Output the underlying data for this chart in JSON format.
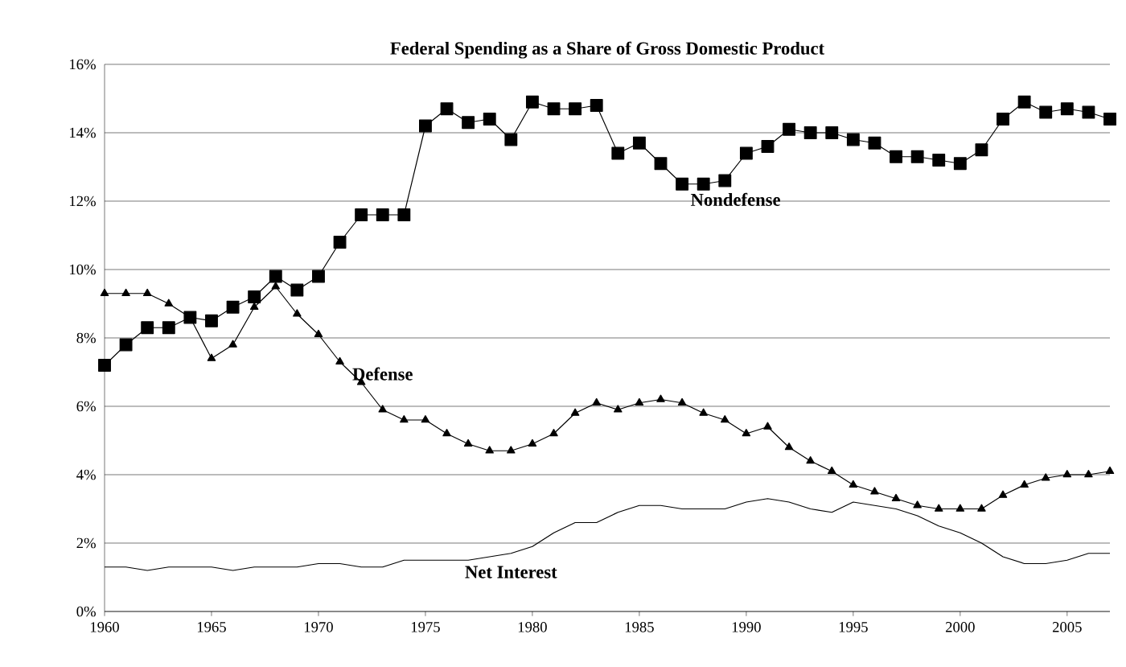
{
  "chart_data": {
    "type": "line",
    "title": "Federal Spending as a Share of Gross Domestic Product",
    "x": [
      1960,
      1961,
      1962,
      1963,
      1964,
      1965,
      1966,
      1967,
      1968,
      1969,
      1970,
      1971,
      1972,
      1973,
      1974,
      1975,
      1976,
      1977,
      1978,
      1979,
      1980,
      1981,
      1982,
      1983,
      1984,
      1985,
      1986,
      1987,
      1988,
      1989,
      1990,
      1991,
      1992,
      1993,
      1994,
      1995,
      1996,
      1997,
      1998,
      1999,
      2000,
      2001,
      2002,
      2003,
      2004,
      2005,
      2006,
      2007
    ],
    "series": [
      {
        "name": "Nondefense",
        "color": "#000000",
        "marker": "square",
        "values": [
          7.2,
          7.8,
          8.3,
          8.3,
          8.6,
          8.5,
          8.9,
          9.2,
          9.8,
          9.4,
          9.8,
          10.8,
          11.6,
          11.6,
          11.6,
          14.2,
          14.7,
          14.3,
          14.4,
          13.8,
          14.9,
          14.7,
          14.7,
          14.8,
          13.4,
          13.7,
          13.1,
          12.5,
          12.5,
          12.6,
          13.4,
          13.6,
          14.1,
          14.0,
          14.0,
          13.8,
          13.7,
          13.3,
          13.3,
          13.2,
          13.1,
          13.5,
          14.4,
          14.9,
          14.6,
          14.7,
          14.6,
          14.4
        ]
      },
      {
        "name": "Defense",
        "color": "#000000",
        "marker": "triangle",
        "values": [
          9.3,
          9.3,
          9.3,
          9.0,
          8.6,
          7.4,
          7.8,
          8.9,
          9.5,
          8.7,
          8.1,
          7.3,
          6.7,
          5.9,
          5.6,
          5.6,
          5.2,
          4.9,
          4.7,
          4.7,
          4.9,
          5.2,
          5.8,
          6.1,
          5.9,
          6.1,
          6.2,
          6.1,
          5.8,
          5.6,
          5.2,
          5.4,
          4.8,
          4.4,
          4.1,
          3.7,
          3.5,
          3.3,
          3.1,
          3.0,
          3.0,
          3.0,
          3.4,
          3.7,
          3.9,
          4.0,
          4.0,
          4.1
        ]
      },
      {
        "name": "Net Interest",
        "color": "#000000",
        "marker": "none",
        "values": [
          1.3,
          1.3,
          1.2,
          1.3,
          1.3,
          1.3,
          1.2,
          1.3,
          1.3,
          1.3,
          1.4,
          1.4,
          1.3,
          1.3,
          1.5,
          1.5,
          1.5,
          1.5,
          1.6,
          1.7,
          1.9,
          2.3,
          2.6,
          2.6,
          2.9,
          3.1,
          3.1,
          3.0,
          3.0,
          3.0,
          3.2,
          3.3,
          3.2,
          3.0,
          2.9,
          3.2,
          3.1,
          3.0,
          2.8,
          2.5,
          2.3,
          2.0,
          1.6,
          1.4,
          1.4,
          1.5,
          1.7,
          1.7
        ]
      }
    ],
    "xlim": [
      1960,
      2007
    ],
    "ylim": [
      0,
      16
    ],
    "xticks": [
      1960,
      1965,
      1970,
      1975,
      1980,
      1985,
      1990,
      1995,
      2000,
      2005
    ],
    "yticks": [
      {
        "value": 0,
        "label": "0%"
      },
      {
        "value": 2,
        "label": "2%"
      },
      {
        "value": 4,
        "label": "4%"
      },
      {
        "value": 6,
        "label": "6%"
      },
      {
        "value": 8,
        "label": "8%"
      },
      {
        "value": 10,
        "label": "10%"
      },
      {
        "value": 12,
        "label": "12%"
      },
      {
        "value": 14,
        "label": "14%"
      },
      {
        "value": 16,
        "label": "16%"
      }
    ],
    "grid": "y",
    "legend": false
  }
}
